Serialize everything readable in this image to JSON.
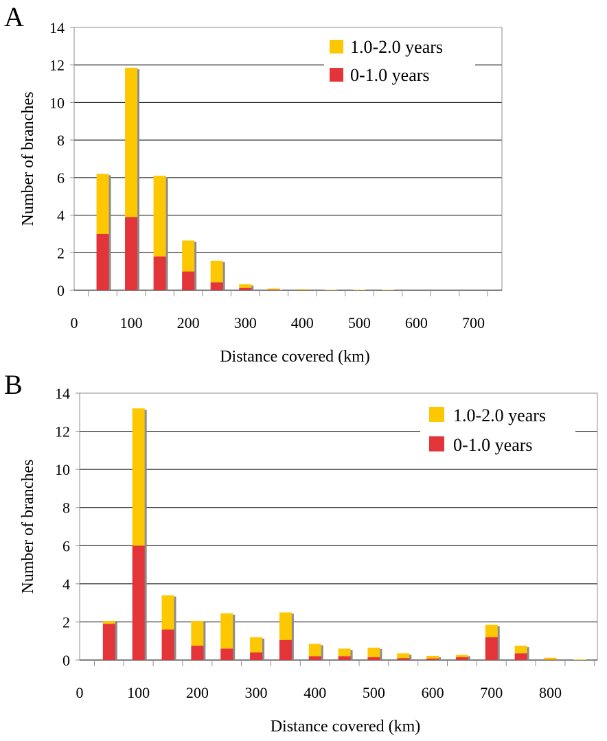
{
  "colors": {
    "recent": "#e3343a",
    "older": "#fdc801",
    "shadow": "#8c8c8c",
    "grid": "#000000",
    "frame": "#8c8c8c"
  },
  "chart_data": [
    {
      "panel": "A",
      "type": "bar",
      "stacked": true,
      "xlabel": "Distance covered (km)",
      "ylabel": "Number of branches",
      "ylim": [
        0,
        14
      ],
      "yticks": [
        "0",
        "2",
        "4",
        "6",
        "8",
        "10",
        "12",
        "14"
      ],
      "xticks": [
        "0",
        "100",
        "200",
        "300",
        "400",
        "500",
        "600",
        "700"
      ],
      "x": [
        50,
        100,
        150,
        200,
        250,
        300,
        350,
        400,
        450,
        500,
        550
      ],
      "series": [
        {
          "name": "0-1.0 years",
          "color": "#e3343a",
          "values": [
            3.0,
            3.9,
            1.8,
            1.0,
            0.42,
            0.12,
            0.03,
            0.01,
            0.0,
            0.0,
            0.0
          ]
        },
        {
          "name": "1.0-2.0 years",
          "color": "#fdc801",
          "values": [
            3.2,
            7.95,
            4.3,
            1.65,
            1.15,
            0.2,
            0.06,
            0.04,
            0.02,
            0.02,
            0.02
          ]
        }
      ],
      "legend_position": "top-right",
      "grid": true
    },
    {
      "panel": "B",
      "type": "bar",
      "stacked": true,
      "xlabel": "Distance covered (km)",
      "ylabel": "Number of branches",
      "ylim": [
        0,
        14
      ],
      "yticks": [
        "0",
        "2",
        "4",
        "6",
        "8",
        "10",
        "12",
        "14"
      ],
      "xticks": [
        "0",
        "100",
        "200",
        "300",
        "400",
        "500",
        "600",
        "700",
        "800"
      ],
      "x": [
        50,
        100,
        150,
        200,
        250,
        300,
        350,
        400,
        450,
        500,
        550,
        600,
        650,
        700,
        750,
        800,
        850
      ],
      "series": [
        {
          "name": "0-1.0 years",
          "color": "#e3343a",
          "values": [
            1.9,
            6.0,
            1.6,
            0.75,
            0.6,
            0.4,
            1.05,
            0.2,
            0.2,
            0.15,
            0.1,
            0.08,
            0.15,
            1.2,
            0.35,
            0.02,
            0.0
          ]
        },
        {
          "name": "1.0-2.0 years",
          "color": "#fdc801",
          "values": [
            0.15,
            7.2,
            1.8,
            1.3,
            1.85,
            0.8,
            1.45,
            0.65,
            0.4,
            0.5,
            0.25,
            0.14,
            0.12,
            0.65,
            0.4,
            0.1,
            0.03
          ]
        }
      ],
      "legend_position": "top-right",
      "grid": true
    }
  ]
}
